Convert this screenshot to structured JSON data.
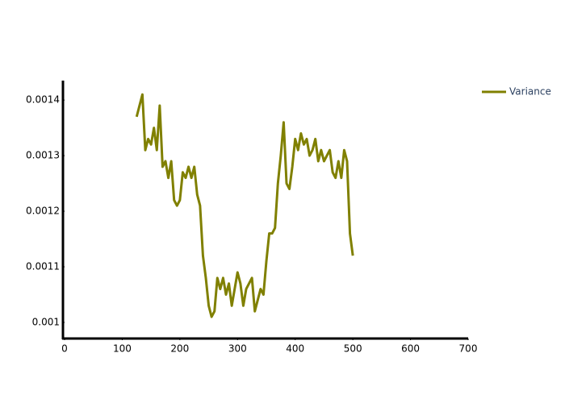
{
  "chart_data": {
    "type": "line",
    "x": [
      125,
      130,
      135,
      140,
      145,
      150,
      155,
      160,
      165,
      170,
      175,
      180,
      185,
      190,
      195,
      200,
      205,
      210,
      215,
      220,
      225,
      230,
      235,
      240,
      245,
      250,
      255,
      260,
      265,
      270,
      275,
      280,
      285,
      290,
      295,
      300,
      305,
      310,
      315,
      320,
      325,
      330,
      335,
      340,
      345,
      350,
      355,
      360,
      365,
      370,
      375,
      380,
      385,
      390,
      395,
      400,
      405,
      410,
      415,
      420,
      425,
      430,
      435,
      440,
      445,
      450,
      455,
      460,
      465,
      470,
      475,
      480,
      485,
      490,
      495,
      500
    ],
    "series": [
      {
        "name": "Variance",
        "color": "#808000",
        "values": [
          0.00137,
          0.00139,
          0.00141,
          0.00131,
          0.00133,
          0.00132,
          0.00135,
          0.00131,
          0.00139,
          0.00128,
          0.00129,
          0.00126,
          0.00129,
          0.00122,
          0.00121,
          0.00122,
          0.00127,
          0.00126,
          0.00128,
          0.00126,
          0.00128,
          0.00123,
          0.00121,
          0.00112,
          0.00108,
          0.00103,
          0.00101,
          0.00102,
          0.00108,
          0.00106,
          0.00108,
          0.00105,
          0.00107,
          0.00103,
          0.00106,
          0.00109,
          0.00107,
          0.00103,
          0.00106,
          0.00107,
          0.00108,
          0.00102,
          0.00104,
          0.00106,
          0.00105,
          0.00111,
          0.00116,
          0.00116,
          0.00117,
          0.00125,
          0.0013,
          0.00136,
          0.00125,
          0.00124,
          0.00128,
          0.00133,
          0.00131,
          0.00134,
          0.00132,
          0.00133,
          0.0013,
          0.00131,
          0.00133,
          0.00129,
          0.00131,
          0.00129,
          0.0013,
          0.00131,
          0.00127,
          0.00126,
          0.00129,
          0.00126,
          0.00131,
          0.00129,
          0.00116,
          0.00112
        ]
      }
    ],
    "xlim": [
      0,
      700
    ],
    "xticks": [
      0,
      100,
      200,
      300,
      400,
      500,
      600,
      700
    ],
    "ylim": [
      0.000971,
      0.001435
    ],
    "yticks": [
      0.001,
      0.0011,
      0.0012,
      0.0013,
      0.0014
    ],
    "legend": "top-right"
  }
}
